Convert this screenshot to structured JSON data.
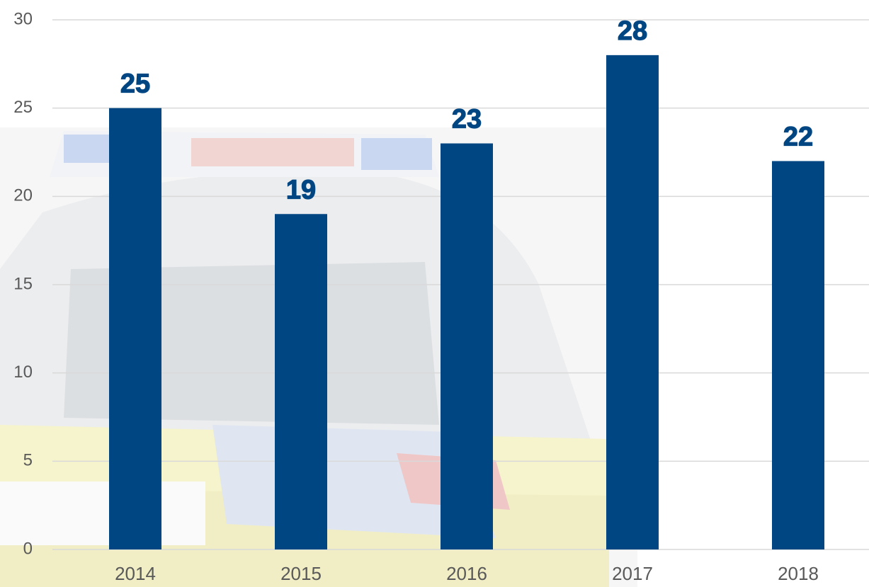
{
  "chart_data": {
    "type": "bar",
    "categories": [
      "2014",
      "2015",
      "2016",
      "2017",
      "2018"
    ],
    "values": [
      25,
      19,
      23,
      28,
      22
    ],
    "color": "#004682",
    "ylim": [
      0,
      30
    ],
    "yticks": [
      0,
      5,
      10,
      15,
      20,
      25,
      30
    ],
    "grid": true
  }
}
